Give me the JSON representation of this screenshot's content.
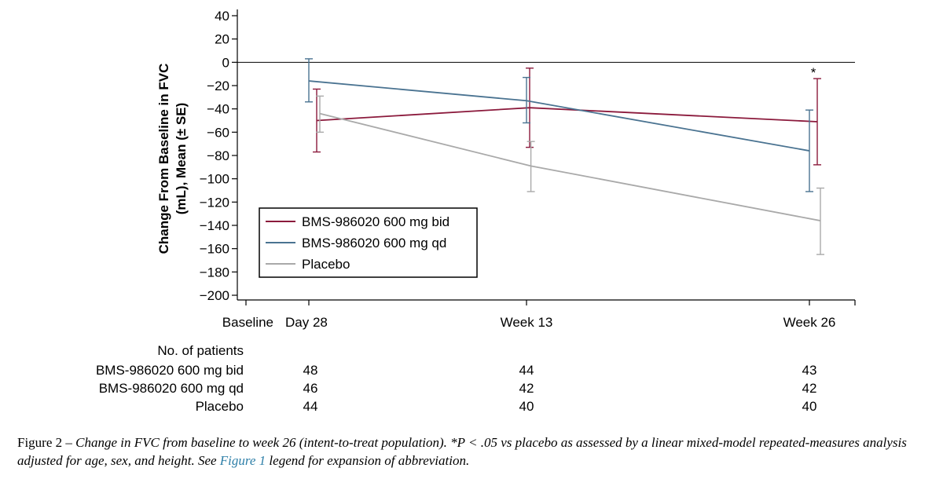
{
  "chart_data": {
    "type": "line",
    "ylabel_line1": "Change From  Baseline in FVC",
    "ylabel_line2": "(mL), Mean (± SE)",
    "ylim": [
      -200,
      40
    ],
    "yticks": [
      40,
      20,
      0,
      -20,
      -40,
      -60,
      -80,
      -100,
      -120,
      -140,
      -160,
      -180,
      -200
    ],
    "ytick_labels": [
      "40",
      "20",
      "0",
      "−20",
      "−40",
      "−60",
      "−80",
      "−100",
      "−120",
      "−140",
      "−160",
      "−180",
      "−200"
    ],
    "x_ticks": [
      {
        "label": "Baseline",
        "week": 0
      },
      {
        "label": "Day 28",
        "week": 4
      },
      {
        "label": "Week 13",
        "week": 13
      },
      {
        "label": "Week 26",
        "week": 26
      }
    ],
    "reference_line_y": 0,
    "legend_position": "lower-left",
    "series": [
      {
        "name": "BMS-986020 600 mg bid",
        "color": "#8b1a3c",
        "points": [
          {
            "week": 4,
            "mean": -50,
            "lo": -77,
            "hi": -23
          },
          {
            "week": 13,
            "mean": -39,
            "lo": -73,
            "hi": -5
          },
          {
            "week": 26,
            "mean": -51,
            "lo": -88,
            "hi": -14
          }
        ]
      },
      {
        "name": "BMS-986020 600 mg qd",
        "color": "#4a7391",
        "points": [
          {
            "week": 4,
            "mean": -16,
            "lo": -34,
            "hi": 3
          },
          {
            "week": 13,
            "mean": -33,
            "lo": -52,
            "hi": -13
          },
          {
            "week": 26,
            "mean": -76,
            "lo": -111,
            "hi": -41
          }
        ]
      },
      {
        "name": "Placebo",
        "color": "#a9a9a9",
        "points": [
          {
            "week": 4,
            "mean": -44,
            "lo": -60,
            "hi": -29
          },
          {
            "week": 13,
            "mean": -89,
            "lo": -111,
            "hi": -68
          },
          {
            "week": 26,
            "mean": -136,
            "lo": -165,
            "hi": -108
          }
        ]
      }
    ],
    "annotations": [
      {
        "text": "*",
        "week": 26,
        "y": -10
      }
    ]
  },
  "patients_table": {
    "heading": "No. of patients",
    "rows": [
      {
        "label": "BMS-986020 600 mg bid",
        "values": [
          "48",
          "44",
          "43"
        ]
      },
      {
        "label": "BMS-986020 600 mg qd",
        "values": [
          "46",
          "42",
          "42"
        ]
      },
      {
        "label": "Placebo",
        "values": [
          "44",
          "40",
          "40"
        ]
      }
    ]
  },
  "caption": {
    "label": "Figure 2 – ",
    "text_part1": "Change in FVC from baseline to week 26 (intent-to-treat population). *P < .05 vs placebo as assessed by a linear mixed-model repeated-measures analysis adjusted for age, sex, and height. See ",
    "link_text": "Figure 1",
    "text_part2": " legend for expansion of abbreviation."
  }
}
